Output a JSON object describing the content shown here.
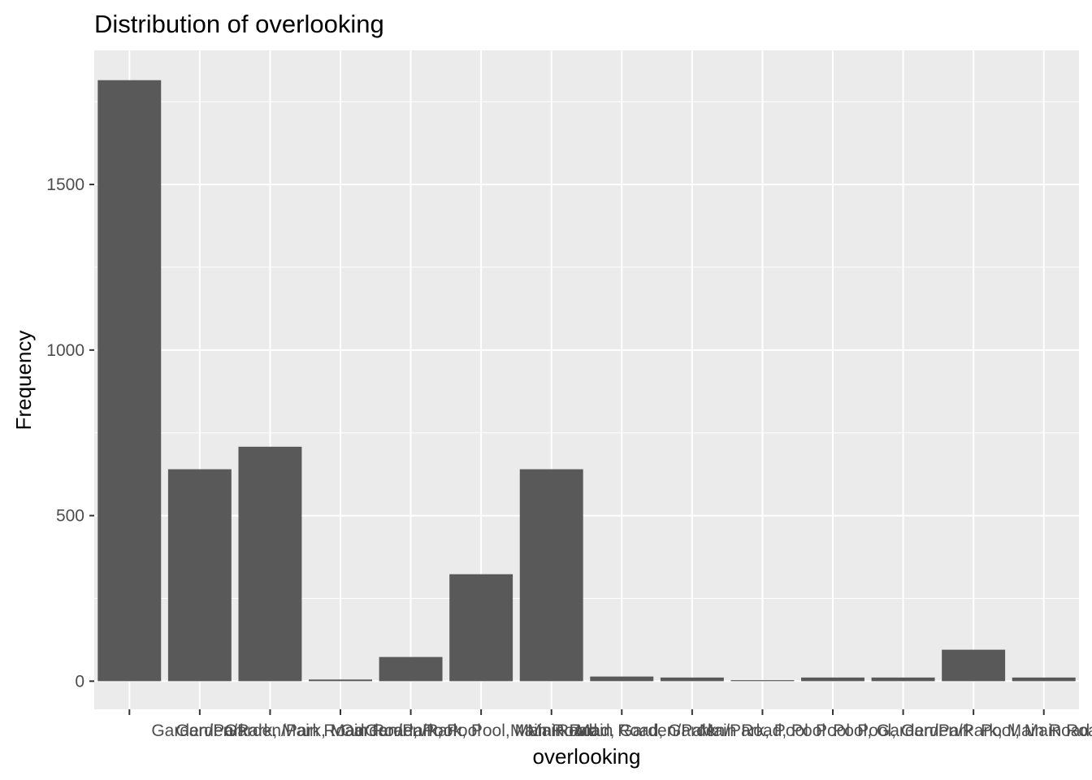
{
  "chart_data": {
    "type": "bar",
    "title": "Distribution of overlooking",
    "xlabel": "overlooking",
    "ylabel": "Frequency",
    "categories": [
      "",
      "Garden/Park",
      "Garden/Park, Main Road",
      "Garden/Park, Main Road, Pool",
      "Garden/Park, Pool",
      "Garden/Park, Pool, Main Road",
      "Main Road",
      "Main Road, Garden/Park",
      "Main Road, Garden/Park, Pool",
      "Main Road, Pool",
      "Pool",
      "Pool, Garden/Park",
      "Pool, Garden/Park, Main Road",
      "Pool, Main Road"
    ],
    "values": [
      1815,
      640,
      708,
      5,
      73,
      323,
      640,
      14,
      11,
      3,
      11,
      11,
      95,
      11
    ],
    "ylim": [
      -85,
      1905
    ],
    "yticks": [
      0,
      500,
      1000,
      1500
    ],
    "grid": true,
    "bar_color": "#595959",
    "panel_color": "#ebebeb",
    "grid_color": "#ffffff"
  }
}
